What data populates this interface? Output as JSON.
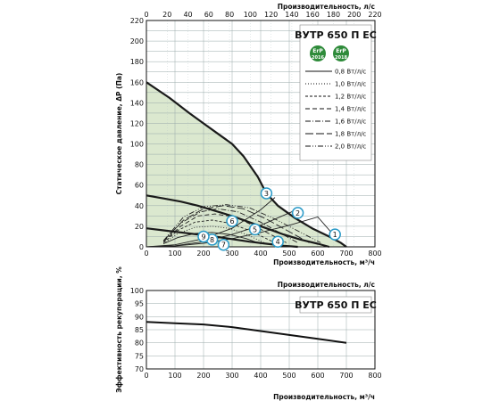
{
  "chart_data": [
    {
      "type": "line",
      "title": "ВУТР 650 П ЕС",
      "xlabel": "Производительность, м³/ч",
      "x2label": "Производительность, л/с",
      "ylabel": "Статическое давление, ΔP (Па)",
      "xlim": [
        0,
        800
      ],
      "x2lim": [
        0,
        220
      ],
      "ylim": [
        0,
        220
      ],
      "x_ticks": [
        0,
        100,
        200,
        300,
        400,
        500,
        600,
        700,
        800
      ],
      "x2_ticks": [
        0,
        20,
        40,
        60,
        80,
        100,
        120,
        140,
        160,
        180,
        200,
        220
      ],
      "y_ticks": [
        0,
        10,
        20,
        30,
        40,
        50,
        60,
        70,
        80,
        90,
        100,
        110,
        120,
        130,
        140,
        150,
        160,
        170,
        180,
        190,
        200,
        210,
        220
      ],
      "y_tick_labels": [
        "0",
        "",
        "20",
        "",
        "40",
        "",
        "60",
        "",
        "80",
        "",
        "100",
        "",
        "120",
        "",
        "140",
        "",
        "160",
        "",
        "180",
        "",
        "200",
        "",
        "220"
      ],
      "grid": true,
      "badges": [
        {
          "top": "ErP",
          "bottom": "2016",
          "color": "#2e8b3a"
        },
        {
          "top": "ErP",
          "bottom": "2018",
          "color": "#2e8b3a"
        }
      ],
      "legend": [
        {
          "label": "0,8 Вт/л/с",
          "dash": ""
        },
        {
          "label": "1,0 Вт/л/с",
          "dash": "1,2"
        },
        {
          "label": "1,2 Вт/л/с",
          "dash": "3,2"
        },
        {
          "label": "1,4 Вт/л/с",
          "dash": "5,3"
        },
        {
          "label": "1,6 Вт/л/с",
          "dash": "6,2,1,2"
        },
        {
          "label": "1,8 Вт/л/с",
          "dash": "9,3"
        },
        {
          "label": "2,0 Вт/л/с",
          "dash": "6,2,1,2,1,2"
        }
      ],
      "fan_curves": [
        {
          "x": [
            0,
            80,
            150,
            200,
            260,
            300,
            340,
            390,
            420,
            460,
            520,
            580,
            640,
            680,
            700
          ],
          "y": [
            160,
            145,
            130,
            120,
            108,
            100,
            88,
            68,
            52,
            40,
            28,
            18,
            10,
            4,
            0
          ]
        },
        {
          "x": [
            0,
            60,
            120,
            180,
            240,
            300,
            360,
            420,
            480,
            540,
            600,
            640
          ],
          "y": [
            50,
            47,
            44,
            40,
            35,
            30,
            24,
            18,
            12,
            7,
            3,
            0
          ]
        },
        {
          "x": [
            0,
            60,
            120,
            180,
            240,
            300,
            360,
            420,
            480,
            530
          ],
          "y": [
            18,
            16,
            14,
            12,
            10,
            7.5,
            5,
            3,
            1,
            0
          ]
        }
      ],
      "system_curves": [
        {
          "x": [
            0,
            100,
            200,
            300,
            400,
            450
          ],
          "y": [
            0,
            2,
            8,
            18,
            36,
            48
          ]
        },
        {
          "x": [
            0,
            100,
            200,
            300,
            400,
            500,
            540
          ],
          "y": [
            0,
            1,
            5,
            12,
            21,
            33,
            38
          ]
        },
        {
          "x": [
            0,
            100,
            200,
            300,
            400,
            500,
            600,
            660
          ],
          "y": [
            0,
            0.8,
            3.5,
            8,
            14,
            21,
            29,
            10
          ]
        }
      ],
      "sfp_curves": [
        {
          "x": [
            60,
            110,
            170,
            230,
            290,
            350,
            400
          ],
          "y": [
            3,
            9,
            13,
            14,
            12,
            8,
            3
          ]
        },
        {
          "x": [
            60,
            110,
            170,
            230,
            290,
            350,
            420
          ],
          "y": [
            3,
            13,
            19,
            20,
            18,
            12,
            3
          ]
        },
        {
          "x": [
            60,
            110,
            170,
            230,
            290,
            360,
            450
          ],
          "y": [
            4,
            16,
            24,
            26,
            23,
            16,
            4
          ]
        },
        {
          "x": [
            60,
            120,
            180,
            240,
            310,
            380,
            490
          ],
          "y": [
            5,
            20,
            30,
            32,
            29,
            20,
            4
          ]
        },
        {
          "x": [
            60,
            120,
            190,
            250,
            320,
            400,
            530
          ],
          "y": [
            5,
            23,
            34,
            37,
            34,
            24,
            4
          ]
        },
        {
          "x": [
            60,
            130,
            200,
            270,
            340,
            420,
            570
          ],
          "y": [
            6,
            26,
            37,
            40,
            37,
            27,
            4
          ]
        },
        {
          "x": [
            60,
            130,
            200,
            280,
            360,
            450,
            610
          ],
          "y": [
            6,
            29,
            39,
            41,
            38,
            27,
            4
          ]
        }
      ],
      "points": [
        {
          "label": "1",
          "x": 660,
          "y": 12
        },
        {
          "label": "2",
          "x": 530,
          "y": 33
        },
        {
          "label": "3",
          "x": 420,
          "y": 52
        },
        {
          "label": "4",
          "x": 460,
          "y": 5
        },
        {
          "label": "5",
          "x": 380,
          "y": 17
        },
        {
          "label": "6",
          "x": 300,
          "y": 25
        },
        {
          "label": "7",
          "x": 270,
          "y": 2
        },
        {
          "label": "8",
          "x": 230,
          "y": 7
        },
        {
          "label": "9",
          "x": 200,
          "y": 10
        }
      ],
      "shade_color": "#dbe8cf"
    },
    {
      "type": "line",
      "title": "ВУТР 650 П ЕС",
      "xlabel": "Производительность, м³/ч",
      "x2label": "Производительность, л/с",
      "ylabel": "Эффективность рекуперации, %",
      "xlim": [
        0,
        800
      ],
      "ylim": [
        70,
        100
      ],
      "x_ticks": [
        0,
        100,
        200,
        300,
        400,
        500,
        600,
        700,
        800
      ],
      "y_ticks": [
        70,
        75,
        80,
        85,
        90,
        95,
        100
      ],
      "grid": true,
      "series": [
        {
          "x": [
            0,
            100,
            200,
            300,
            400,
            500,
            600,
            700
          ],
          "y": [
            88,
            87.5,
            87,
            86,
            84.5,
            83,
            81.5,
            80
          ]
        }
      ]
    }
  ]
}
